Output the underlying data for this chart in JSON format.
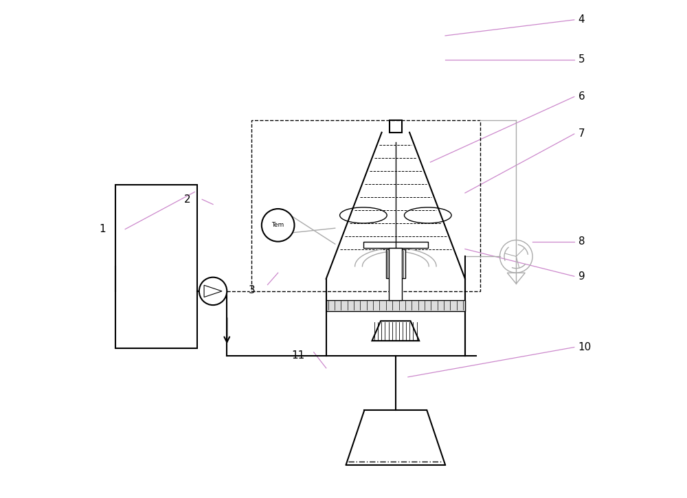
{
  "bg_color": "#ffffff",
  "line_color": "#000000",
  "gray_line_color": "#aaaaaa",
  "pink_line_color": "#cc88cc",
  "label_color": "#000000",
  "figsize": [
    10.0,
    7.25
  ],
  "dpi": 100
}
